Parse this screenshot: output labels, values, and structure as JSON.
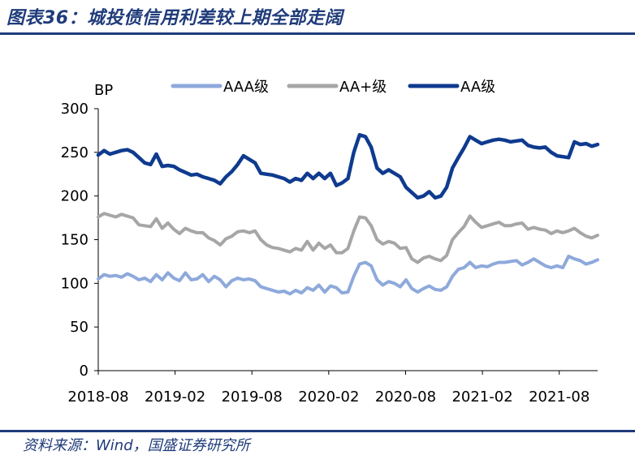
{
  "header": {
    "title": "图表36：城投债信用利差较上期全部走阔"
  },
  "footer": {
    "source": "资料来源：Wind，国盛证券研究所"
  },
  "colors": {
    "brand": "#1f3b7a",
    "AAA": "#8ea9db",
    "AA_plus": "#a6a6a6",
    "AA": "#0f3b8f"
  },
  "chart_data": {
    "type": "line",
    "title": "",
    "xlabel": "",
    "ylabel": "BP",
    "ylim": [
      0,
      300
    ],
    "yticks": [
      0,
      50,
      100,
      150,
      200,
      250,
      300
    ],
    "x_start": "2018-08",
    "x_end": "2021-11",
    "x_ticks": [
      "2018-08",
      "2019-02",
      "2019-08",
      "2020-02",
      "2020-08",
      "2021-02",
      "2021-08"
    ],
    "legend_position": "top",
    "grid": false,
    "series": [
      {
        "name": "AAA级",
        "color": "#8ea9db",
        "values": [
          105,
          110,
          108,
          109,
          107,
          111,
          108,
          104,
          106,
          102,
          110,
          104,
          112,
          106,
          103,
          112,
          104,
          105,
          110,
          102,
          108,
          104,
          96,
          103,
          106,
          104,
          105,
          103,
          96,
          94,
          92,
          90,
          91,
          88,
          92,
          89,
          95,
          92,
          98,
          90,
          97,
          95,
          89,
          90,
          108,
          122,
          124,
          120,
          104,
          98,
          102,
          100,
          96,
          104,
          94,
          90,
          94,
          97,
          93,
          92,
          96,
          108,
          116,
          118,
          124,
          118,
          120,
          119,
          122,
          124,
          124,
          125,
          126,
          121,
          124,
          128,
          124,
          120,
          118,
          120,
          118,
          131,
          128,
          126,
          122,
          124,
          127
        ]
      },
      {
        "name": "AA+级",
        "color": "#a6a6a6",
        "values": [
          176,
          180,
          178,
          176,
          179,
          177,
          175,
          167,
          166,
          165,
          174,
          163,
          169,
          162,
          157,
          163,
          160,
          158,
          158,
          152,
          149,
          144,
          151,
          154,
          159,
          160,
          158,
          160,
          150,
          144,
          141,
          140,
          138,
          136,
          140,
          138,
          148,
          138,
          146,
          140,
          144,
          135,
          135,
          140,
          160,
          176,
          175,
          166,
          150,
          145,
          148,
          146,
          140,
          141,
          128,
          124,
          129,
          131,
          128,
          126,
          132,
          150,
          158,
          165,
          177,
          170,
          164,
          166,
          168,
          170,
          166,
          166,
          168,
          169,
          162,
          164,
          162,
          161,
          157,
          160,
          158,
          160,
          163,
          158,
          154,
          152,
          155
        ]
      },
      {
        "name": "AA级",
        "color": "#0f3b8f",
        "values": [
          247,
          252,
          248,
          250,
          252,
          253,
          250,
          244,
          238,
          236,
          248,
          234,
          235,
          234,
          230,
          227,
          224,
          225,
          222,
          220,
          218,
          214,
          222,
          228,
          236,
          246,
          242,
          238,
          226,
          225,
          224,
          222,
          220,
          216,
          220,
          218,
          226,
          220,
          226,
          220,
          226,
          212,
          215,
          220,
          250,
          270,
          268,
          256,
          232,
          226,
          230,
          226,
          222,
          210,
          204,
          198,
          200,
          205,
          198,
          200,
          210,
          232,
          244,
          255,
          268,
          264,
          260,
          262,
          264,
          265,
          264,
          262,
          263,
          264,
          258,
          256,
          255,
          256,
          250,
          246,
          245,
          244,
          262,
          259,
          260,
          257,
          259
        ]
      }
    ]
  }
}
